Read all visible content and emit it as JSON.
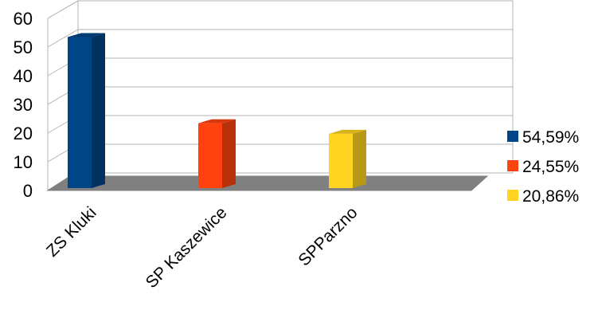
{
  "chart_data": {
    "type": "bar",
    "style": "3d-column",
    "categories": [
      "ZS Kluki",
      "SP Kaszewice",
      "SPParzno"
    ],
    "values": [
      54.59,
      24.55,
      20.86
    ],
    "colors": [
      "#004586",
      "#ff420e",
      "#ffd320"
    ],
    "ylim": [
      0,
      60
    ],
    "yticks": [
      "0",
      "10",
      "20",
      "30",
      "40",
      "50",
      "60"
    ],
    "grid": true,
    "legend": {
      "position": "right",
      "entries": [
        "54,59%",
        "24,55%",
        "20,86%"
      ]
    },
    "title": "",
    "xlabel": "",
    "ylabel": ""
  }
}
